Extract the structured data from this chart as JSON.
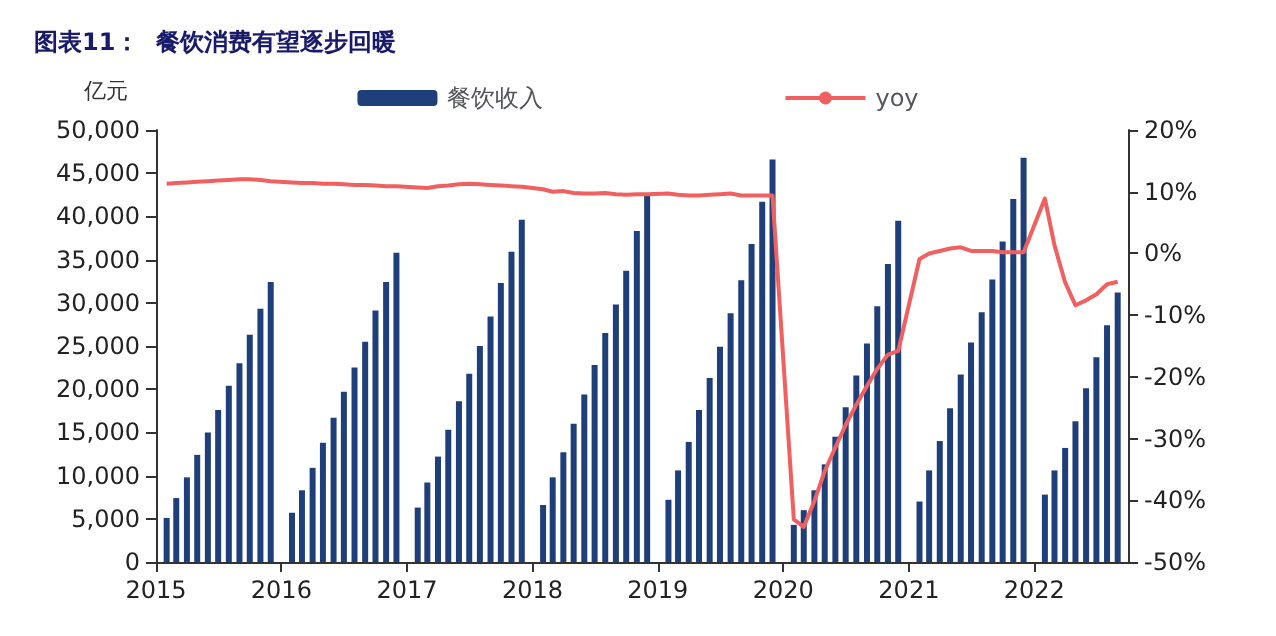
{
  "chart_data": {
    "type": "bar",
    "title": "图表11：  餐饮消费有望逐步回暖",
    "ylabel": "亿元",
    "x": [
      "2015-02",
      "2015-03",
      "2015-04",
      "2015-05",
      "2015-06",
      "2015-07",
      "2015-08",
      "2015-09",
      "2015-10",
      "2015-11",
      "2015-12",
      "2016-02",
      "2016-03",
      "2016-04",
      "2016-05",
      "2016-06",
      "2016-07",
      "2016-08",
      "2016-09",
      "2016-10",
      "2016-11",
      "2016-12",
      "2017-02",
      "2017-03",
      "2017-04",
      "2017-05",
      "2017-06",
      "2017-07",
      "2017-08",
      "2017-09",
      "2017-10",
      "2017-11",
      "2017-12",
      "2018-02",
      "2018-03",
      "2018-04",
      "2018-05",
      "2018-06",
      "2018-07",
      "2018-08",
      "2018-09",
      "2018-10",
      "2018-11",
      "2018-12",
      "2019-02",
      "2019-03",
      "2019-04",
      "2019-05",
      "2019-06",
      "2019-07",
      "2019-08",
      "2019-09",
      "2019-10",
      "2019-11",
      "2019-12",
      "2020-02",
      "2020-03",
      "2020-04",
      "2020-05",
      "2020-06",
      "2020-07",
      "2020-08",
      "2020-09",
      "2020-10",
      "2020-11",
      "2020-12",
      "2021-02",
      "2021-03",
      "2021-04",
      "2021-05",
      "2021-06",
      "2021-07",
      "2021-08",
      "2021-09",
      "2021-10",
      "2021-11",
      "2021-12",
      "2022-02",
      "2022-03",
      "2022-04",
      "2022-05",
      "2022-06",
      "2022-07",
      "2022-08",
      "2022-09"
    ],
    "series": [
      {
        "name": "餐饮收入",
        "color": "#1f3f7a",
        "values": [
          5100,
          7400,
          9800,
          12400,
          15000,
          17600,
          20400,
          23000,
          26300,
          29300,
          32400,
          5700,
          8300,
          10900,
          13800,
          16700,
          19700,
          22500,
          25500,
          29100,
          32400,
          35800,
          6300,
          9200,
          12200,
          15300,
          18600,
          21800,
          25000,
          28400,
          32300,
          35900,
          39600,
          6600,
          9800,
          12700,
          16000,
          19400,
          22800,
          26500,
          29800,
          33700,
          38300,
          42500,
          7200,
          10600,
          13900,
          17600,
          21300,
          24900,
          28800,
          32600,
          36800,
          41700,
          46600,
          4300,
          6000,
          8300,
          11300,
          14500,
          17900,
          21600,
          25300,
          29600,
          34500,
          39500,
          7000,
          10600,
          14000,
          17800,
          21700,
          25400,
          28900,
          32700,
          37100,
          42000,
          46800,
          7800,
          10600,
          13200,
          16300,
          20100,
          23700,
          27400,
          31200
        ]
      },
      {
        "name": "yoy",
        "type": "line",
        "axis": "y2",
        "color": "#f06060",
        "values": [
          11.3,
          11.4,
          11.5,
          11.6,
          11.7,
          11.8,
          11.9,
          12.0,
          12.0,
          11.9,
          11.7,
          11.5,
          11.4,
          11.4,
          11.3,
          11.3,
          11.2,
          11.1,
          11.1,
          11.0,
          10.9,
          10.9,
          10.7,
          10.6,
          10.9,
          11.0,
          11.2,
          11.3,
          11.2,
          11.1,
          11.0,
          10.9,
          10.8,
          10.4,
          10.0,
          10.1,
          9.8,
          9.7,
          9.7,
          9.8,
          9.6,
          9.5,
          9.6,
          9.6,
          9.7,
          9.5,
          9.4,
          9.4,
          9.5,
          9.6,
          9.7,
          9.4,
          9.4,
          9.4,
          9.4,
          -43.1,
          -44.3,
          -40.1,
          -35.3,
          -31.4,
          -27.8,
          -24.5,
          -21.5,
          -18.7,
          -16.4,
          -15.8,
          -0.9,
          0.0,
          0.4,
          0.8,
          1.0,
          0.4,
          0.4,
          0.4,
          0.2,
          0.2,
          0.2,
          8.9,
          1.3,
          -4.7,
          -8.4,
          -7.6,
          -6.6,
          -5.0,
          -4.6
        ]
      }
    ],
    "xlim": [
      "2015-01",
      "2022-10"
    ],
    "xticks": [
      {
        "value": "2015-01",
        "label": "2015"
      },
      {
        "value": "2016-01",
        "label": "2016"
      },
      {
        "value": "2017-01",
        "label": "2017"
      },
      {
        "value": "2018-01",
        "label": "2018"
      },
      {
        "value": "2019-01",
        "label": "2019"
      },
      {
        "value": "2020-01",
        "label": "2020"
      },
      {
        "value": "2021-01",
        "label": "2021"
      },
      {
        "value": "2022-01",
        "label": "2022"
      }
    ],
    "ylim": [
      0,
      50000
    ],
    "yticks": [
      {
        "value": 0,
        "label": "0"
      },
      {
        "value": 5000,
        "label": "5,000"
      },
      {
        "value": 10000,
        "label": "10,000"
      },
      {
        "value": 15000,
        "label": "15,000"
      },
      {
        "value": 20000,
        "label": "20,000"
      },
      {
        "value": 25000,
        "label": "25,000"
      },
      {
        "value": 30000,
        "label": "30,000"
      },
      {
        "value": 35000,
        "label": "35,000"
      },
      {
        "value": 40000,
        "label": "40,000"
      },
      {
        "value": 45000,
        "label": "45,000"
      },
      {
        "value": 50000,
        "label": "50,000"
      }
    ],
    "y2lim": [
      -50,
      20
    ],
    "y2ticks": [
      {
        "value": -50,
        "label": "-50%"
      },
      {
        "value": -40,
        "label": "-40%"
      },
      {
        "value": -30,
        "label": "-30%"
      },
      {
        "value": -20,
        "label": "-20%"
      },
      {
        "value": -10,
        "label": "-10%"
      },
      {
        "value": 0,
        "label": "0%"
      },
      {
        "value": 10,
        "label": "10%"
      },
      {
        "value": 20,
        "label": "20%"
      }
    ],
    "grid": false,
    "legend": "top",
    "marker": "none",
    "line_style": "solid"
  }
}
